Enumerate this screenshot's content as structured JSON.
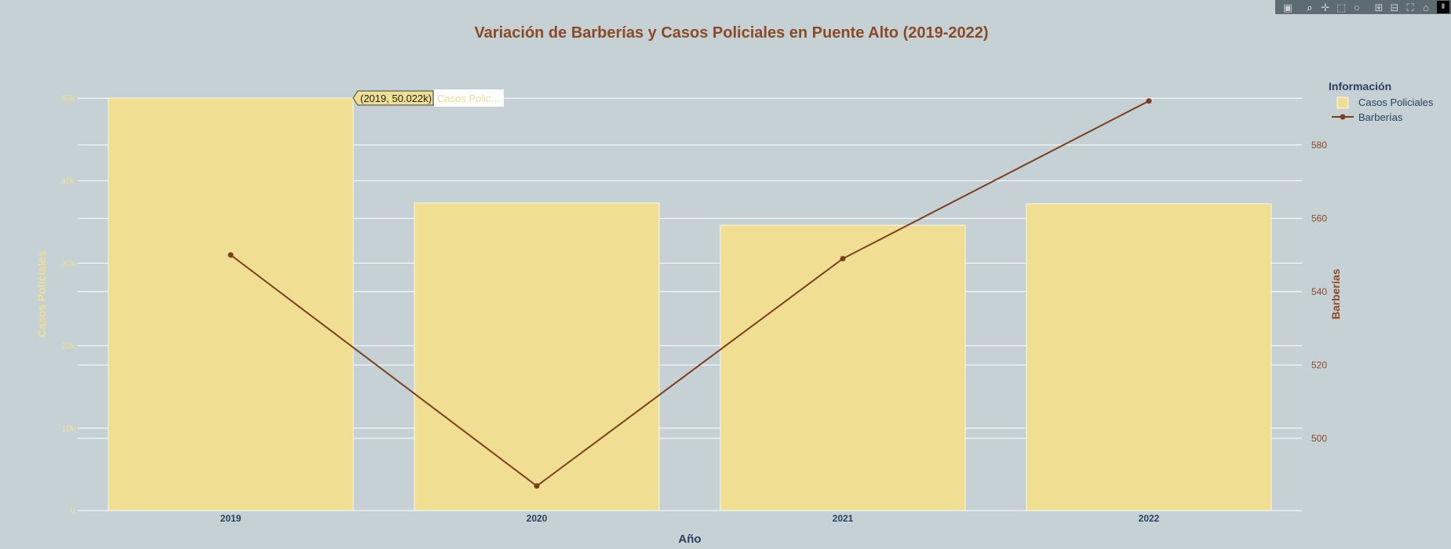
{
  "colors": {
    "background": "#c5d1d4",
    "bar": "#f0df93",
    "bar_stroke": "#fbf6e1",
    "line": "#7b3f1f",
    "title": "#8b4a26",
    "left_axis": "#f0df93",
    "right_axis": "#8b4a26",
    "x_axis": "#2a3f5f",
    "grid": "#ffffff"
  },
  "modebar": {
    "icons": [
      "camera-icon",
      "zoom-icon",
      "pan-icon",
      "box-select-icon",
      "lasso-icon",
      "zoom-in-icon",
      "zoom-out-icon",
      "autoscale-icon",
      "reset-axes-icon",
      "plotly-logo-icon"
    ]
  },
  "tooltip": {
    "text": "(2019, 50.022k)",
    "series": "Casos Polic..."
  },
  "chart_data": {
    "type": "bar",
    "title": "Variación de Barberías y Casos Policiales en Puente Alto (2019-2022)",
    "categories": [
      "2019",
      "2020",
      "2021",
      "2022"
    ],
    "xlabel": "Año",
    "ylabel": "Casos Policiales",
    "y2label": "Barberías",
    "ylim": [
      0,
      50022
    ],
    "y2lim": [
      480.3,
      592.8
    ],
    "yticks": [
      0,
      10000,
      20000,
      30000,
      40000,
      50000
    ],
    "yticklabels": [
      "0",
      "10k",
      "20k",
      "30k",
      "40k",
      "50k"
    ],
    "y2ticks": [
      500,
      520,
      540,
      560,
      580
    ],
    "y2ticklabels": [
      "500",
      "520",
      "540",
      "560",
      "580"
    ],
    "grid": true,
    "legend": {
      "title": "Información",
      "position": "top-right"
    },
    "series": [
      {
        "name": "Casos Policiales",
        "type": "bar",
        "axis": "left",
        "values": [
          50022,
          37300,
          34600,
          37200
        ]
      },
      {
        "name": "Barberías",
        "type": "line",
        "axis": "right",
        "values": [
          550,
          487,
          549,
          592
        ]
      }
    ]
  }
}
